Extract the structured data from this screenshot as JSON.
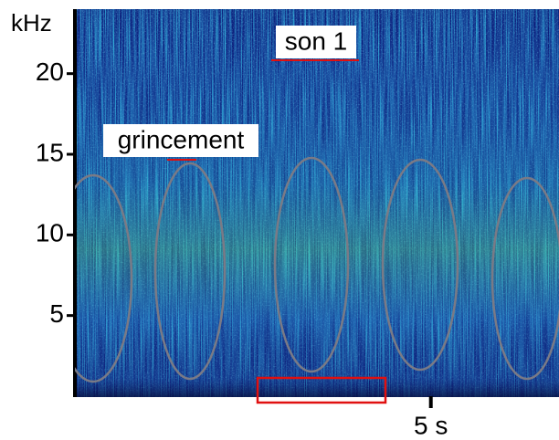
{
  "chart_data": {
    "type": "spectrogram",
    "y_label": "kHz",
    "ylim": [
      0,
      24
    ],
    "yticks": [
      5,
      10,
      15,
      20
    ],
    "xlim": [
      0,
      6.8
    ],
    "xticks": [
      {
        "value": 5,
        "label": "5 s"
      }
    ],
    "annotations": [
      "son 1",
      "grincement"
    ]
  }
}
